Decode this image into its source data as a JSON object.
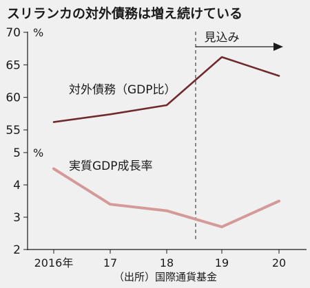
{
  "chart_data": {
    "title": "スリランカの対外債務は増え続けている",
    "source": "（出所）国際通貨基金",
    "categories": [
      "2016年",
      "17",
      "18",
      "19",
      "20"
    ],
    "projection_label": "見込み",
    "projection_start_between": [
      "18",
      "19"
    ],
    "panels": [
      {
        "type": "line",
        "unit": "%",
        "ylim": [
          55,
          70
        ],
        "yticks": [
          55,
          60,
          65,
          70
        ],
        "series": [
          {
            "name": "対外債務（GDP比）",
            "color": "#6e2a2e",
            "values": [
              56.2,
              57.4,
              58.8,
              66.2,
              63.3
            ]
          }
        ]
      },
      {
        "type": "line",
        "unit": "%",
        "ylim": [
          2,
          5
        ],
        "yticks": [
          2,
          3,
          4,
          5
        ],
        "series": [
          {
            "name": "実質GDP成長率",
            "color": "#d49a9a",
            "values": [
              4.5,
              3.4,
              3.2,
              2.7,
              3.5
            ]
          }
        ]
      }
    ]
  }
}
